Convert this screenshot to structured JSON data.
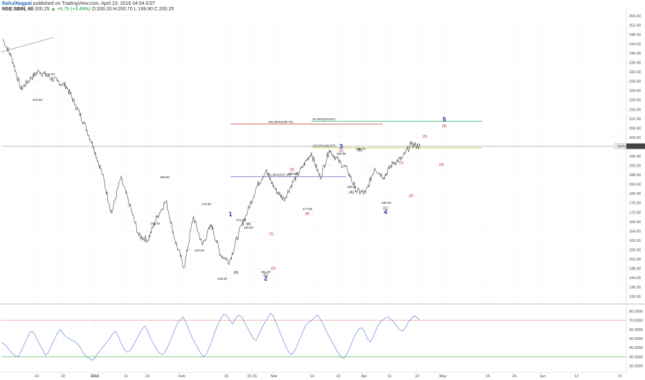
{
  "header": {
    "author": "RahulNagpal",
    "published": "published on TradingView.com, April 23, 2016 04:54 EST",
    "symbol": "NSE:SBIN, 60",
    "last": "200.25",
    "change": "▲ +6.75 (+3.49%)",
    "open": "O:200.20",
    "high": "H:200.70",
    "low": "L:199.90",
    "close": "C:200.25"
  },
  "colors": {
    "price_line": "#555555",
    "rsi_line": "#5b83d6",
    "rsi_upper": "#e05555",
    "rsi_lower": "#3db33d",
    "last_price_line": "#888888",
    "fib_red": "#c0392b",
    "fib_blue": "#2f3fb0",
    "fib_green": "#27ae60",
    "fib_yellow": "#c2b81b",
    "wave_blue": "#1f2e9e",
    "wave_red": "#b0202a"
  },
  "chart_data": [
    {
      "type": "line",
      "series": [
        {
          "x": [
            "Dec 7",
            "Dec 10",
            "Dec 14",
            "Dec 17",
            "Dec 22",
            "Dec 28",
            "Jan 1",
            "Jan 5",
            "Jan 8",
            "Jan 12",
            "Jan 14",
            "Jan 18",
            "Jan 20",
            "Jan 22",
            "Jan 25",
            "Jan 28",
            "Feb 1",
            "Feb 4",
            "Feb 8",
            "Feb 10",
            "Feb 12",
            "Feb 15",
            "Feb 17",
            "Feb 19",
            "Feb 22",
            "Feb 24",
            "Feb 26",
            "Mar 1",
            "Mar 2",
            "Mar 4",
            "Mar 8",
            "Mar 10",
            "Mar 14",
            "Mar 16",
            "Mar 18",
            "Mar 21",
            "Mar 23",
            "Mar 28",
            "Mar 30",
            "Apr 1",
            "Apr 5",
            "Apr 7",
            "Apr 11",
            "Apr 13",
            "Apr 18",
            "Apr 20",
            "Apr 22"
          ],
          "y": [
            246,
            238,
            224.5,
            229,
            232.4,
            230,
            228,
            226,
            218,
            210,
            200,
            188,
            171.5,
            186.8,
            175,
            162,
            160.2,
            170,
            176.9,
            160,
            148.25,
            170.3,
            158,
            166.8,
            154,
            151,
            163,
            172.5,
            183,
            189.85,
            182,
            177.55,
            185,
            191,
            197.5,
            186.55,
            198.75,
            194,
            190,
            181,
            180.2,
            191,
            187,
            193,
            195,
            201,
            200.25
          ]
        }
      ],
      "ylim": [
        134,
        258
      ],
      "y_ticks": [
        "256.00",
        "252.00",
        "248.00",
        "244.00",
        "240.00",
        "236.00",
        "232.00",
        "228.00",
        "224.00",
        "220.00",
        "216.00",
        "212.00",
        "208.00",
        "204.00",
        "200.00",
        "196.00",
        "192.00",
        "188.00",
        "184.00",
        "180.00",
        "176.00",
        "172.00",
        "168.00",
        "164.00",
        "160.00",
        "156.00",
        "152.00",
        "148.00",
        "144.00",
        "140.00",
        "136.00"
      ],
      "last_value_label": "200.25",
      "last_symbol": "SBIN",
      "price_labels": [
        "232.40",
        "224.50",
        "186.80",
        "171.50",
        "176.90",
        "160.20",
        "148.25",
        "170.30",
        "166.80",
        "151.00",
        "189.85",
        "177.55",
        "186.55",
        "198.75",
        "196.96",
        "180.20"
      ],
      "fib_levels": [
        {
          "label": "261.80%(209.70)",
          "value": 209.7,
          "color": "red"
        },
        {
          "label": "161.80%(187.20)",
          "value": 187.2,
          "color": "blue"
        },
        {
          "label": "61.80%(210.87)",
          "value": 210.87,
          "color": "green"
        },
        {
          "label": "38.60%(199.57)",
          "value": 199.57,
          "color": "yellow"
        }
      ],
      "wave_labels": [
        {
          "text": "1",
          "style": "blue"
        },
        {
          "text": "2",
          "style": "blue"
        },
        {
          "text": "3",
          "style": "blue"
        },
        {
          "text": "4",
          "style": "blue"
        },
        {
          "text": "5",
          "style": "blue"
        },
        {
          "text": "(A)",
          "style": "dark"
        },
        {
          "text": "(B)",
          "style": "dark"
        },
        {
          "text": "(C)",
          "style": "dark"
        },
        {
          "text": "(A)",
          "style": "dark"
        },
        {
          "text": "(B)",
          "style": "dark"
        },
        {
          "text": "(C)",
          "style": "dark"
        },
        {
          "text": "(1)",
          "style": "red"
        },
        {
          "text": "(2)",
          "style": "red"
        },
        {
          "text": "(3)",
          "style": "red"
        },
        {
          "text": "(4)",
          "style": "red"
        },
        {
          "text": "(5)",
          "style": "red"
        },
        {
          "text": "(1)",
          "style": "red"
        },
        {
          "text": "(2)",
          "style": "red"
        },
        {
          "text": "(3)",
          "style": "red"
        },
        {
          "text": "(4)",
          "style": "red"
        },
        {
          "text": "(5)",
          "style": "red"
        }
      ]
    },
    {
      "type": "line",
      "series": [
        {
          "values": [
            46,
            44,
            40,
            36,
            33,
            30,
            31,
            38,
            45,
            52,
            58,
            57,
            50,
            44,
            38,
            32,
            34,
            42,
            48,
            55,
            60,
            56,
            52,
            50,
            48,
            47,
            44,
            40,
            34,
            30,
            28,
            26,
            29,
            34,
            38,
            42,
            46,
            50,
            55,
            58,
            52,
            44,
            38,
            35,
            37,
            42,
            48,
            54,
            60,
            64,
            58,
            50,
            44,
            38,
            34,
            32,
            36,
            42,
            50,
            58,
            66,
            70,
            74,
            68,
            60,
            52,
            46,
            40,
            34,
            30,
            33,
            40,
            48,
            58,
            66,
            72,
            77,
            75,
            70,
            66,
            72,
            76,
            74,
            68,
            62,
            56,
            50,
            48,
            55,
            62,
            68,
            73,
            78,
            74,
            66,
            58,
            50,
            42,
            36,
            32,
            36,
            42,
            50,
            58,
            65,
            68,
            70,
            73,
            76,
            71,
            65,
            58,
            52,
            46,
            40,
            34,
            30,
            28,
            33,
            40,
            48,
            55,
            60,
            62,
            58,
            50,
            46,
            52,
            60,
            66,
            70,
            72,
            74,
            71,
            68,
            64,
            60,
            58,
            62,
            68,
            72,
            75,
            73,
            70
          ]
        }
      ],
      "ylim": [
        15,
        85
      ],
      "y_ticks": [
        "80.0000",
        "70.0000",
        "60.0000",
        "50.0000",
        "40.0000",
        "30.0000",
        "20.0000"
      ],
      "bands": [
        70,
        30
      ]
    }
  ],
  "x_axis_labels": [
    "14",
    "22",
    "2016",
    "11",
    "19",
    "Feb",
    "15",
    "15:15",
    "Mar",
    "14",
    "22",
    "Apr",
    "11",
    "22",
    "May",
    "16",
    "24",
    "Jun",
    "13",
    "27"
  ]
}
